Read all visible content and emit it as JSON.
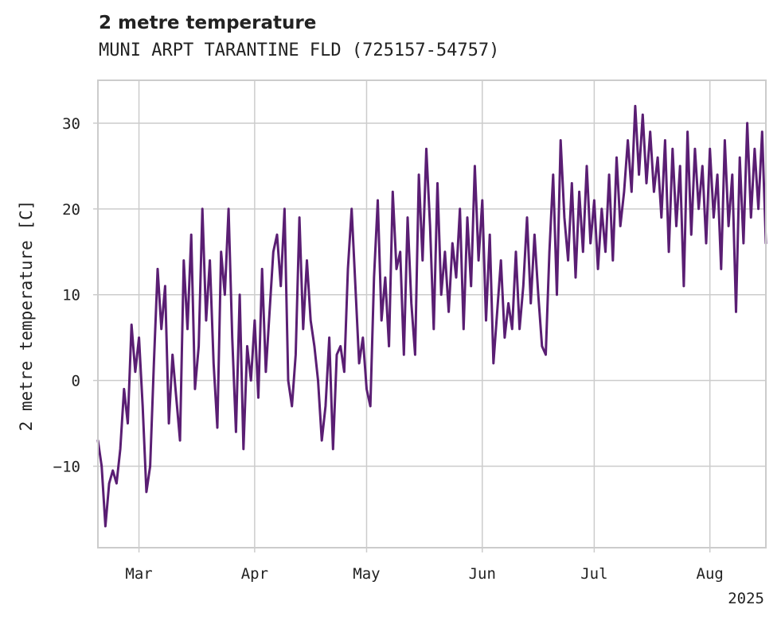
{
  "chart_data": {
    "type": "line",
    "title": "2 metre temperature",
    "subtitle": "MUNI ARPT TARANTINE FLD (725157-54757)",
    "xlabel": "",
    "ylabel": "2 metre temperature [C]",
    "x_range": [
      "2025-02-18",
      "2025-08-16"
    ],
    "ylim": [
      -19.5,
      35
    ],
    "x_ticks": [
      {
        "date": "2025-03-01",
        "label": "Mar"
      },
      {
        "date": "2025-04-01",
        "label": "Apr"
      },
      {
        "date": "2025-05-01",
        "label": "May"
      },
      {
        "date": "2025-06-01",
        "label": "Jun"
      },
      {
        "date": "2025-07-01",
        "label": "Jul"
      },
      {
        "date": "2025-08-01",
        "label": "Aug"
      }
    ],
    "year_label": "2025",
    "y_ticks": [
      -10,
      0,
      10,
      20,
      30
    ],
    "grid": true,
    "color": "#5a1e73",
    "series": [
      {
        "values": [
          [
            "2025-02-18",
            -7
          ],
          [
            "2025-02-19",
            -10
          ],
          [
            "2025-02-20",
            -17
          ],
          [
            "2025-02-21",
            -12
          ],
          [
            "2025-02-22",
            -10.5
          ],
          [
            "2025-02-23",
            -12
          ],
          [
            "2025-02-24",
            -8
          ],
          [
            "2025-02-25",
            -1
          ],
          [
            "2025-02-26",
            -5
          ],
          [
            "2025-02-27",
            6.5
          ],
          [
            "2025-02-28",
            1
          ],
          [
            "2025-03-01",
            5
          ],
          [
            "2025-03-02",
            -3
          ],
          [
            "2025-03-03",
            -13
          ],
          [
            "2025-03-04",
            -10
          ],
          [
            "2025-03-05",
            2
          ],
          [
            "2025-03-06",
            13
          ],
          [
            "2025-03-07",
            6
          ],
          [
            "2025-03-08",
            11
          ],
          [
            "2025-03-09",
            -5
          ],
          [
            "2025-03-10",
            3
          ],
          [
            "2025-03-11",
            -2
          ],
          [
            "2025-03-12",
            -7
          ],
          [
            "2025-03-13",
            14
          ],
          [
            "2025-03-14",
            6
          ],
          [
            "2025-03-15",
            17
          ],
          [
            "2025-03-16",
            -1
          ],
          [
            "2025-03-17",
            4
          ],
          [
            "2025-03-18",
            20
          ],
          [
            "2025-03-19",
            7
          ],
          [
            "2025-03-20",
            14
          ],
          [
            "2025-03-21",
            2
          ],
          [
            "2025-03-22",
            -5.5
          ],
          [
            "2025-03-23",
            15
          ],
          [
            "2025-03-24",
            10
          ],
          [
            "2025-03-25",
            20
          ],
          [
            "2025-03-26",
            5
          ],
          [
            "2025-03-27",
            -6
          ],
          [
            "2025-03-28",
            10
          ],
          [
            "2025-03-29",
            -8
          ],
          [
            "2025-03-30",
            4
          ],
          [
            "2025-03-31",
            0
          ],
          [
            "2025-04-01",
            7
          ],
          [
            "2025-04-02",
            -2
          ],
          [
            "2025-04-03",
            13
          ],
          [
            "2025-04-04",
            1
          ],
          [
            "2025-04-05",
            8
          ],
          [
            "2025-04-06",
            15
          ],
          [
            "2025-04-07",
            17
          ],
          [
            "2025-04-08",
            11
          ],
          [
            "2025-04-09",
            20
          ],
          [
            "2025-04-10",
            0
          ],
          [
            "2025-04-11",
            -3
          ],
          [
            "2025-04-12",
            3
          ],
          [
            "2025-04-13",
            19
          ],
          [
            "2025-04-14",
            6
          ],
          [
            "2025-04-15",
            14
          ],
          [
            "2025-04-16",
            7
          ],
          [
            "2025-04-17",
            4
          ],
          [
            "2025-04-18",
            0
          ],
          [
            "2025-04-19",
            -7
          ],
          [
            "2025-04-20",
            -3
          ],
          [
            "2025-04-21",
            5
          ],
          [
            "2025-04-22",
            -8
          ],
          [
            "2025-04-23",
            3
          ],
          [
            "2025-04-24",
            4
          ],
          [
            "2025-04-25",
            1
          ],
          [
            "2025-04-26",
            13
          ],
          [
            "2025-04-27",
            20
          ],
          [
            "2025-04-28",
            11
          ],
          [
            "2025-04-29",
            2
          ],
          [
            "2025-04-30",
            5
          ],
          [
            "2025-05-01",
            -1
          ],
          [
            "2025-05-02",
            -3
          ],
          [
            "2025-05-03",
            12
          ],
          [
            "2025-05-04",
            21
          ],
          [
            "2025-05-05",
            7
          ],
          [
            "2025-05-06",
            12
          ],
          [
            "2025-05-07",
            4
          ],
          [
            "2025-05-08",
            22
          ],
          [
            "2025-05-09",
            13
          ],
          [
            "2025-05-10",
            15
          ],
          [
            "2025-05-11",
            3
          ],
          [
            "2025-05-12",
            19
          ],
          [
            "2025-05-13",
            9
          ],
          [
            "2025-05-14",
            3
          ],
          [
            "2025-05-15",
            24
          ],
          [
            "2025-05-16",
            14
          ],
          [
            "2025-05-17",
            27
          ],
          [
            "2025-05-18",
            18
          ],
          [
            "2025-05-19",
            6
          ],
          [
            "2025-05-20",
            23
          ],
          [
            "2025-05-21",
            10
          ],
          [
            "2025-05-22",
            15
          ],
          [
            "2025-05-23",
            8
          ],
          [
            "2025-05-24",
            16
          ],
          [
            "2025-05-25",
            12
          ],
          [
            "2025-05-26",
            20
          ],
          [
            "2025-05-27",
            6
          ],
          [
            "2025-05-28",
            19
          ],
          [
            "2025-05-29",
            11
          ],
          [
            "2025-05-30",
            25
          ],
          [
            "2025-05-31",
            14
          ],
          [
            "2025-06-01",
            21
          ],
          [
            "2025-06-02",
            7
          ],
          [
            "2025-06-03",
            17
          ],
          [
            "2025-06-04",
            2
          ],
          [
            "2025-06-05",
            8
          ],
          [
            "2025-06-06",
            14
          ],
          [
            "2025-06-07",
            5
          ],
          [
            "2025-06-08",
            9
          ],
          [
            "2025-06-09",
            6
          ],
          [
            "2025-06-10",
            15
          ],
          [
            "2025-06-11",
            6
          ],
          [
            "2025-06-12",
            11
          ],
          [
            "2025-06-13",
            19
          ],
          [
            "2025-06-14",
            9
          ],
          [
            "2025-06-15",
            17
          ],
          [
            "2025-06-16",
            10
          ],
          [
            "2025-06-17",
            4
          ],
          [
            "2025-06-18",
            3
          ],
          [
            "2025-06-19",
            15
          ],
          [
            "2025-06-20",
            24
          ],
          [
            "2025-06-21",
            10
          ],
          [
            "2025-06-22",
            28
          ],
          [
            "2025-06-23",
            19
          ],
          [
            "2025-06-24",
            14
          ],
          [
            "2025-06-25",
            23
          ],
          [
            "2025-06-26",
            12
          ],
          [
            "2025-06-27",
            22
          ],
          [
            "2025-06-28",
            15
          ],
          [
            "2025-06-29",
            25
          ],
          [
            "2025-06-30",
            16
          ],
          [
            "2025-07-01",
            21
          ],
          [
            "2025-07-02",
            13
          ],
          [
            "2025-07-03",
            20
          ],
          [
            "2025-07-04",
            15
          ],
          [
            "2025-07-05",
            24
          ],
          [
            "2025-07-06",
            14
          ],
          [
            "2025-07-07",
            26
          ],
          [
            "2025-07-08",
            18
          ],
          [
            "2025-07-09",
            22
          ],
          [
            "2025-07-10",
            28
          ],
          [
            "2025-07-11",
            22
          ],
          [
            "2025-07-12",
            32
          ],
          [
            "2025-07-13",
            24
          ],
          [
            "2025-07-14",
            31
          ],
          [
            "2025-07-15",
            23
          ],
          [
            "2025-07-16",
            29
          ],
          [
            "2025-07-17",
            22
          ],
          [
            "2025-07-18",
            26
          ],
          [
            "2025-07-19",
            19
          ],
          [
            "2025-07-20",
            28
          ],
          [
            "2025-07-21",
            15
          ],
          [
            "2025-07-22",
            27
          ],
          [
            "2025-07-23",
            18
          ],
          [
            "2025-07-24",
            25
          ],
          [
            "2025-07-25",
            11
          ],
          [
            "2025-07-26",
            29
          ],
          [
            "2025-07-27",
            17
          ],
          [
            "2025-07-28",
            27
          ],
          [
            "2025-07-29",
            20
          ],
          [
            "2025-07-30",
            25
          ],
          [
            "2025-07-31",
            16
          ],
          [
            "2025-08-01",
            27
          ],
          [
            "2025-08-02",
            19
          ],
          [
            "2025-08-03",
            24
          ],
          [
            "2025-08-04",
            13
          ],
          [
            "2025-08-05",
            28
          ],
          [
            "2025-08-06",
            18
          ],
          [
            "2025-08-07",
            24
          ],
          [
            "2025-08-08",
            8
          ],
          [
            "2025-08-09",
            26
          ],
          [
            "2025-08-10",
            16
          ],
          [
            "2025-08-11",
            30
          ],
          [
            "2025-08-12",
            19
          ],
          [
            "2025-08-13",
            27
          ],
          [
            "2025-08-14",
            20
          ],
          [
            "2025-08-15",
            29
          ],
          [
            "2025-08-16",
            16
          ]
        ]
      }
    ]
  }
}
